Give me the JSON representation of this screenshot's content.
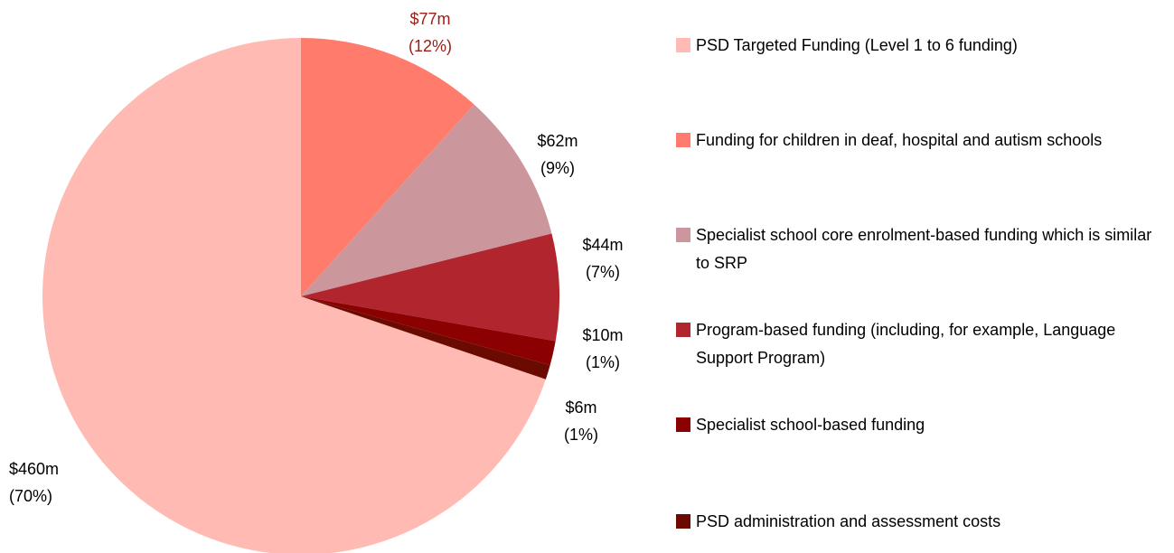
{
  "chart_data": {
    "type": "pie",
    "categories": [
      "PSD Targeted Funding (Level 1 to 6 funding)",
      "Funding for children in deaf, hospital and autism schools",
      "Specialist school core enrolment-based funding which is similar to SRP",
      "Program-based funding (including, for example, Language Support Program)",
      "Specialist school-based funding",
      "PSD administration and assessment costs"
    ],
    "values": [
      460,
      77,
      62,
      44,
      10,
      6
    ],
    "value_labels": [
      [
        "$460m",
        "(70%)"
      ],
      [
        "$77m",
        "(12%)"
      ],
      [
        "$62m",
        "(9%)"
      ],
      [
        "$44m",
        "(7%)"
      ],
      [
        "$10m",
        "(1%)"
      ],
      [
        "$6m",
        "(1%)"
      ]
    ],
    "colors": [
      "#ffbbb3",
      "#ff7b6b",
      "#cc979c",
      "#b0252e",
      "#8b0000",
      "#6b0a00"
    ],
    "legend": "right"
  }
}
